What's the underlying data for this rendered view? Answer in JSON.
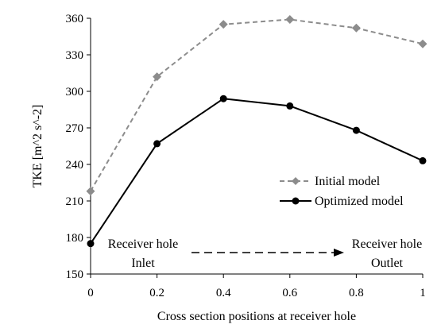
{
  "chart_data": {
    "type": "line",
    "x": [
      0,
      0.2,
      0.4,
      0.6,
      0.8,
      1
    ],
    "x_ticks": [
      "0",
      "0.2",
      "0.4",
      "0.6",
      "0.8",
      "1"
    ],
    "y_ticks": [
      "150",
      "180",
      "210",
      "240",
      "270",
      "300",
      "330",
      "360"
    ],
    "xlim": [
      0,
      1
    ],
    "ylim": [
      150,
      360
    ],
    "xlabel": "Cross section positions at receiver hole",
    "ylabel": "TKE [m^2 s^-2]",
    "grid": false,
    "legend_position": "right",
    "series": [
      {
        "name": "Initial model",
        "values": [
          218,
          312,
          355,
          359,
          352,
          339
        ],
        "color": "#8c8c8c",
        "line_style": "dashed",
        "marker": "diamond"
      },
      {
        "name": "Optimized model",
        "values": [
          175,
          257,
          294,
          288,
          268,
          243
        ],
        "color": "#000000",
        "line_style": "solid",
        "marker": "circle"
      }
    ],
    "annotations": {
      "left_line1": "Receiver hole",
      "left_line2": "Inlet",
      "right_line1": "Receiver hole",
      "right_line2": "Outlet"
    }
  }
}
